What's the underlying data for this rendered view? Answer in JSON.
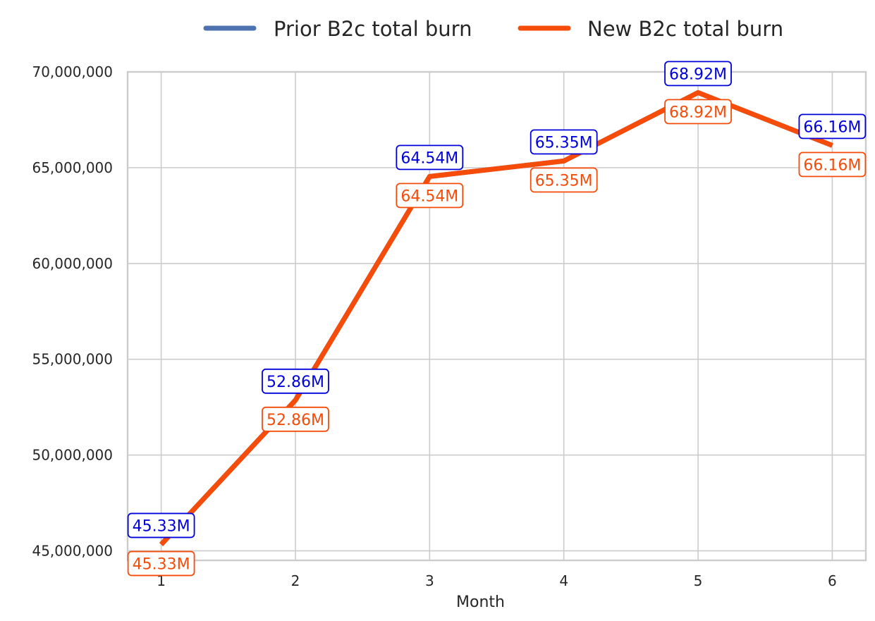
{
  "colors": {
    "prior_series": "#4c72b0",
    "new_series": "#f64c0a",
    "prior_label": "#0000dd",
    "new_label": "#f64c0a",
    "grid": "#cccccc",
    "spine": "#cccccc",
    "text": "#262626"
  },
  "chart_data": {
    "type": "line",
    "title": "",
    "xlabel": "Month",
    "ylabel": "",
    "x": [
      1,
      2,
      3,
      4,
      5,
      6
    ],
    "x_tick_labels": [
      "1",
      "2",
      "3",
      "4",
      "5",
      "6"
    ],
    "ylim": [
      44500000,
      70000000
    ],
    "y_ticks": [
      45000000,
      50000000,
      55000000,
      60000000,
      65000000,
      70000000
    ],
    "y_tick_labels": [
      "45,000,000",
      "50,000,000",
      "55,000,000",
      "60,000,000",
      "65,000,000",
      "70,000,000"
    ],
    "grid": true,
    "legend_position": "top-center",
    "series": [
      {
        "name": "Prior B2c total burn",
        "values": [
          45330000,
          52860000,
          64540000,
          65350000,
          68920000,
          66160000
        ],
        "labels": [
          "45.33M",
          "52.86M",
          "64.54M",
          "65.35M",
          "68.92M",
          "66.16M"
        ],
        "label_placement": "below"
      },
      {
        "name": "New B2c total burn",
        "values": [
          45330000,
          52860000,
          64540000,
          65350000,
          68920000,
          66160000
        ],
        "labels": [
          "45.33M",
          "52.86M",
          "64.54M",
          "65.35M",
          "68.92M",
          "66.16M"
        ],
        "label_placement": "above"
      }
    ]
  }
}
